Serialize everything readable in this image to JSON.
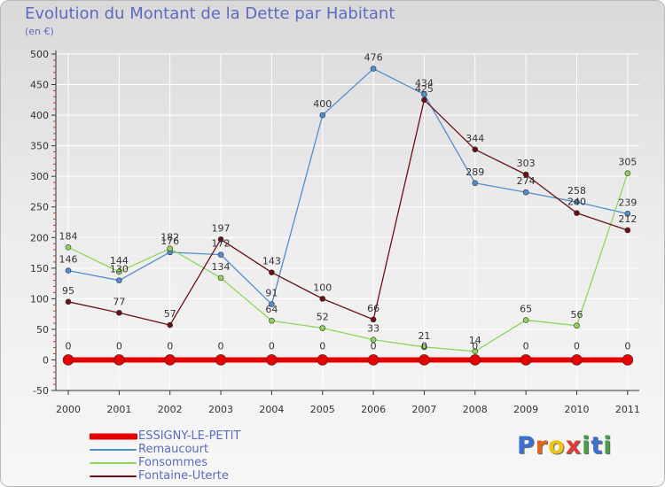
{
  "header": {
    "title": "Evolution du Montant de la Dette par Habitant",
    "subtitle": "(en €)"
  },
  "colors": {
    "ESSIGNY-LE-PETIT": "#e60000",
    "Remaucourt": "#4f8fd0",
    "Fonsommes": "#8ed65a",
    "Fontaine-Uterte": "#6b0f14",
    "axis": "#333333",
    "grid": "#ffffff",
    "text": "#5c6bc0"
  },
  "logo": {
    "letters": [
      "P",
      "r",
      "o",
      "x",
      "i",
      "t",
      "i"
    ],
    "colors": [
      "#3b6fd1",
      "#e8621c",
      "#f1c40f",
      "#e53935",
      "#43a047",
      "#3b6fd1",
      "#43a047"
    ]
  },
  "chart_data": {
    "type": "line",
    "title": "Evolution du Montant de la Dette par Habitant",
    "subtitle": "(en €)",
    "xlabel": "",
    "ylabel": "",
    "categories": [
      "2000",
      "2001",
      "2002",
      "2003",
      "2004",
      "2005",
      "2006",
      "2007",
      "2008",
      "2009",
      "2010",
      "2011"
    ],
    "ylim": [
      -50,
      500
    ],
    "yticks": [
      -50,
      0,
      50,
      100,
      150,
      200,
      250,
      300,
      350,
      400,
      450,
      500
    ],
    "grid": true,
    "legend_position": "bottom-left",
    "series": [
      {
        "name": "ESSIGNY-LE-PETIT",
        "values": [
          0,
          0,
          0,
          0,
          0,
          0,
          0,
          0,
          0,
          0,
          0,
          0
        ]
      },
      {
        "name": "Remaucourt",
        "values": [
          146,
          130,
          176,
          172,
          91,
          400,
          476,
          434,
          289,
          274,
          258,
          239
        ]
      },
      {
        "name": "Fonsommes",
        "values": [
          184,
          144,
          182,
          134,
          64,
          52,
          33,
          21,
          14,
          65,
          56,
          305
        ]
      },
      {
        "name": "Fontaine-Uterte",
        "values": [
          95,
          77,
          57,
          197,
          143,
          100,
          66,
          425,
          344,
          303,
          240,
          212
        ]
      }
    ]
  }
}
